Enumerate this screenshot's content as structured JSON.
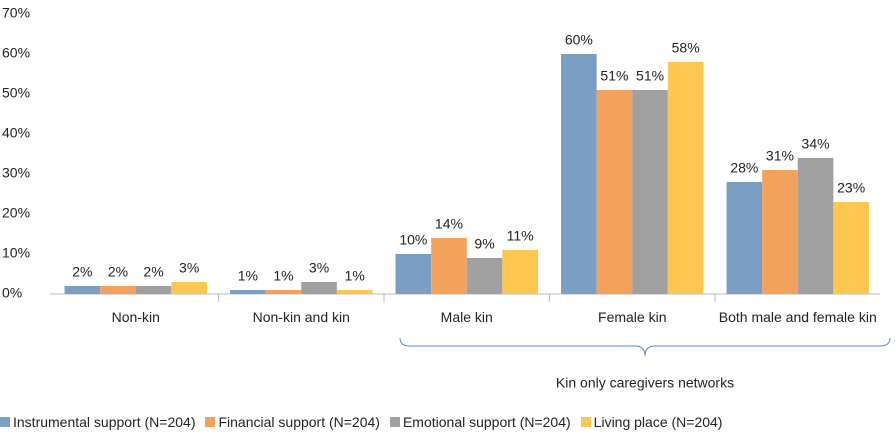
{
  "chart_data": {
    "type": "bar",
    "categories": [
      "Non-kin",
      "Non-kin and kin",
      "Male kin",
      "Female kin",
      "Both male and female kin"
    ],
    "series": [
      {
        "name": "Instrumental support (N=204)",
        "color": "#7b9fc3",
        "values": [
          2,
          1,
          10,
          60,
          28
        ],
        "value_labels": [
          "2%",
          "1%",
          "10%",
          "60%",
          "28%"
        ]
      },
      {
        "name": "Financial support (N=204)",
        "color": "#f2a25d",
        "values": [
          2,
          1,
          14,
          51,
          31
        ],
        "value_labels": [
          "2%",
          "1%",
          "14%",
          "51%",
          "31%"
        ]
      },
      {
        "name": "Emotional support (N=204)",
        "color": "#a0a0a0",
        "values": [
          2,
          3,
          9,
          51,
          34
        ],
        "value_labels": [
          "2%",
          "3%",
          "9%",
          "51%",
          "34%"
        ]
      },
      {
        "name": "Living place (N=204)",
        "color": "#fcc64f",
        "values": [
          3,
          1,
          11,
          58,
          23
        ],
        "value_labels": [
          "3%",
          "1%",
          "11%",
          "58%",
          "23%"
        ]
      }
    ],
    "annotation": "Kin only caregivers networks",
    "ylim": [
      0,
      70
    ],
    "yticks": [
      {
        "value": 0,
        "label": "0%"
      },
      {
        "value": 10,
        "label": "10%"
      },
      {
        "value": 20,
        "label": "20%"
      },
      {
        "value": 30,
        "label": "30%"
      },
      {
        "value": 40,
        "label": "40%"
      },
      {
        "value": 50,
        "label": "50%"
      },
      {
        "value": 60,
        "label": "60%"
      },
      {
        "value": 70,
        "label": "70%"
      }
    ],
    "legend": "bottom"
  }
}
